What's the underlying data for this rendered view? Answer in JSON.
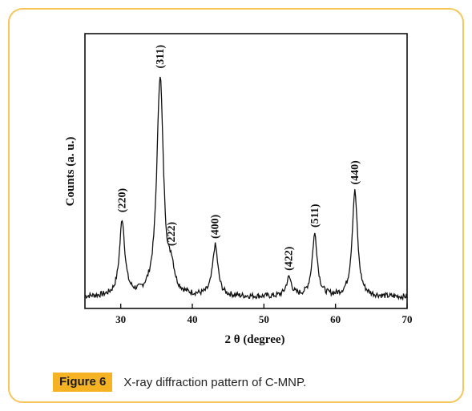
{
  "caption": {
    "label": "Figure 6",
    "text": "X-ray diffraction pattern of C-MNP."
  },
  "colors": {
    "border": "#f5c65a",
    "label_bg": "#f5b324",
    "trace": "#111111"
  },
  "chart_data": {
    "type": "line",
    "title": "",
    "xlabel": "2 θ (degree)",
    "ylabel": "Counts (a. u.)",
    "xlim": [
      25,
      70
    ],
    "ylim": [
      0,
      1.2
    ],
    "xticks": [
      30,
      40,
      50,
      60,
      70
    ],
    "show_y_ticks": false,
    "grid": false,
    "baseline": 0.05,
    "peaks": [
      {
        "x": 30.2,
        "height": 0.33,
        "label": "(220)"
      },
      {
        "x": 35.5,
        "height": 0.96,
        "label": "(311)"
      },
      {
        "x": 37.1,
        "height": 0.09,
        "label": "(222)"
      },
      {
        "x": 43.2,
        "height": 0.22,
        "label": "(400)"
      },
      {
        "x": 53.5,
        "height": 0.08,
        "label": "(422)"
      },
      {
        "x": 57.1,
        "height": 0.27,
        "label": "(511)"
      },
      {
        "x": 62.7,
        "height": 0.46,
        "label": "(440)"
      }
    ]
  }
}
